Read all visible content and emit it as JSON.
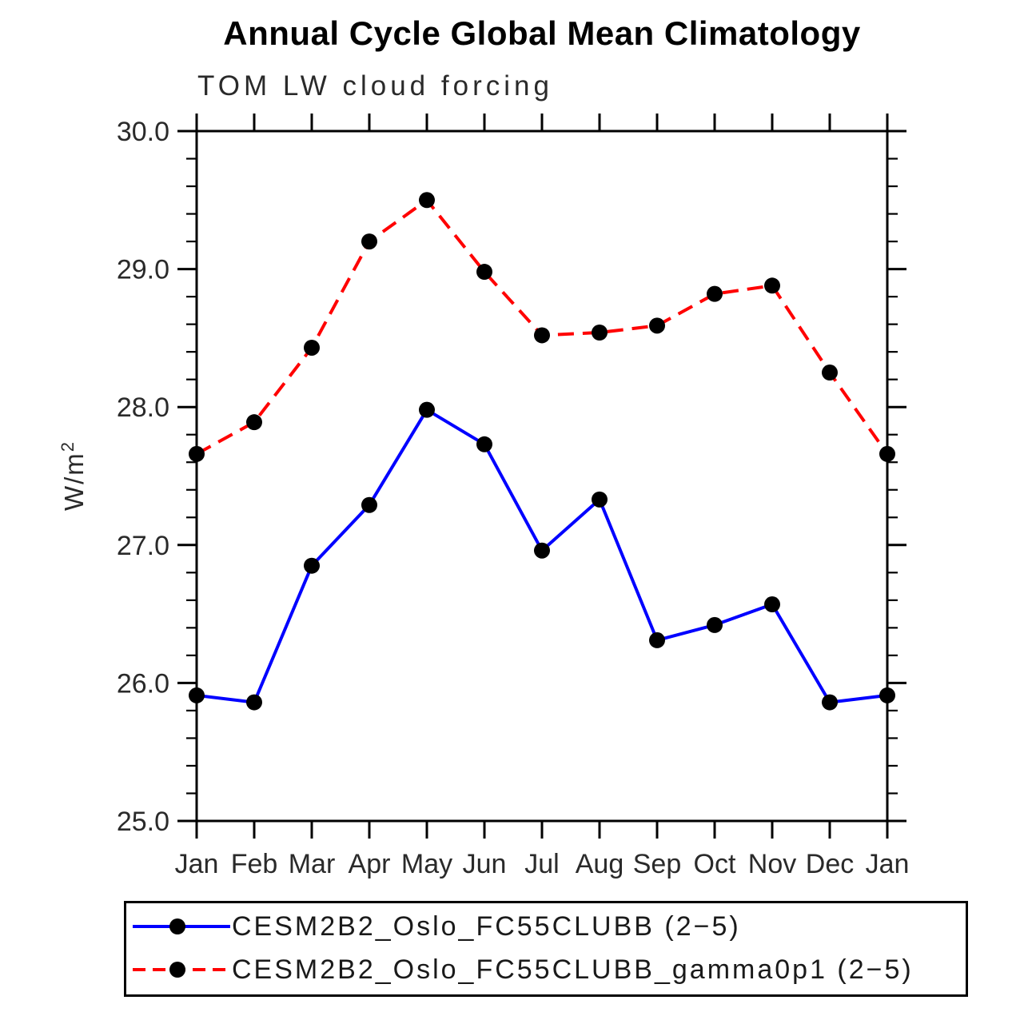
{
  "window": {
    "background": "#ffffff"
  },
  "header": {
    "title": "Annual Cycle Global Mean Climatology",
    "subtitle": "TOM LW cloud forcing"
  },
  "y_axis": {
    "label_base": "W/m",
    "label_exponent": "2",
    "tick_labels": [
      "30.0",
      "29.0",
      "28.0",
      "27.0",
      "26.0",
      "25.0"
    ],
    "min": 25.0,
    "max": 30.0,
    "major_step": 1.0,
    "minor_step": 0.2
  },
  "x_axis": {
    "tick_labels": [
      "Jan",
      "Feb",
      "Mar",
      "Apr",
      "May",
      "Jun",
      "Jul",
      "Aug",
      "Sep",
      "Oct",
      "Nov",
      "Dec",
      "Jan"
    ]
  },
  "legend": {
    "entries": [
      {
        "label": "CESM2B2_Oslo_FC55CLUBB (2−5)",
        "color": "#0000ff",
        "line_style": "solid",
        "marker": "filled-circle",
        "marker_color": "#000000"
      },
      {
        "label": "CESM2B2_Oslo_FC55CLUBB_gamma0p1 (2−5)",
        "color": "#ff0000",
        "line_style": "dashed",
        "marker": "filled-circle",
        "marker_color": "#000000"
      }
    ]
  },
  "chart_data": {
    "type": "line",
    "title": "Annual Cycle Global Mean Climatology",
    "subtitle": "TOM LW cloud forcing",
    "xlabel": "",
    "ylabel": "W/m²",
    "categories": [
      "Jan",
      "Feb",
      "Mar",
      "Apr",
      "May",
      "Jun",
      "Jul",
      "Aug",
      "Sep",
      "Oct",
      "Nov",
      "Dec",
      "Jan"
    ],
    "series": [
      {
        "name": "CESM2B2_Oslo_FC55CLUBB (2−5)",
        "color": "#0000ff",
        "line_style": "solid",
        "values": [
          25.91,
          25.86,
          26.85,
          27.29,
          27.98,
          27.73,
          26.96,
          27.33,
          26.31,
          26.42,
          26.57,
          25.86,
          25.91
        ]
      },
      {
        "name": "CESM2B2_Oslo_FC55CLUBB_gamma0p1 (2−5)",
        "color": "#ff0000",
        "line_style": "dashed",
        "values": [
          27.66,
          27.89,
          28.43,
          29.2,
          29.5,
          28.98,
          28.52,
          28.54,
          28.59,
          28.82,
          28.88,
          28.25,
          27.66
        ]
      }
    ],
    "ylim": [
      25.0,
      30.0
    ],
    "y_major_ticks": [
      25.0,
      26.0,
      27.0,
      28.0,
      29.0,
      30.0
    ],
    "y_minor_step": 0.2,
    "grid": false,
    "legend_position": "bottom",
    "marker": {
      "shape": "circle",
      "color": "#000000",
      "radius": 10
    }
  }
}
